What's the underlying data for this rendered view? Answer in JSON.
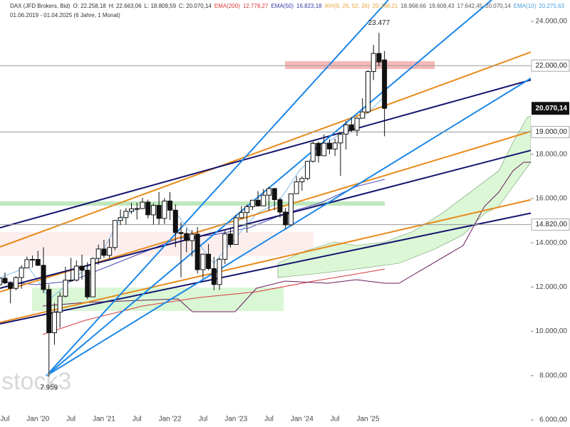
{
  "chart_data": {
    "type": "candlestick",
    "header": {
      "line1": [
        {
          "text": "DAX (JFD Brokers, Bid)",
          "color": "#333333"
        },
        {
          "text": "O: 22.258,18",
          "color": "#333333"
        },
        {
          "text": "H: 22.663,06",
          "color": "#333333"
        },
        {
          "text": "L: 18.809,59",
          "color": "#333333"
        },
        {
          "text": "C: 20.070,14",
          "color": "#333333"
        },
        {
          "text": "EMA(200)",
          "color": "#d83a3a"
        },
        {
          "text": "12.778,27",
          "color": "#d83a3a"
        },
        {
          "text": "EMA(50)",
          "color": "#3a3aa8"
        },
        {
          "text": "16.823,18",
          "color": "#3a3aa8"
        },
        {
          "text": "IKH(9, 26, 52, 26)",
          "color": "#e8a53a"
        },
        {
          "text": "20.248,21",
          "color": "#e8a53a"
        },
        {
          "text": "18.968,66",
          "color": "#555555"
        },
        {
          "text": "19.608,43",
          "color": "#555555"
        },
        {
          "text": "17.642,45",
          "color": "#555555"
        },
        {
          "text": "20.070,14",
          "color": "#555555"
        },
        {
          "text": "EMA(10)",
          "color": "#4a9fe0"
        },
        {
          "text": "20.275,63",
          "color": "#4a9fe0"
        }
      ],
      "line2": "01.06.2019 - 01.04.2025  (6 Jahre, 1 Monat)"
    },
    "watermark": "stock3",
    "up_color": "#ffffff",
    "down_color": "#111111",
    "candles": [
      [
        12100,
        12440,
        11990,
        12399
      ],
      [
        12399,
        12656,
        12120,
        12189
      ],
      [
        12189,
        12250,
        11266,
        11939
      ],
      [
        11939,
        12494,
        11850,
        12428
      ],
      [
        12428,
        12986,
        11924,
        12867
      ],
      [
        12867,
        13374,
        12850,
        13236
      ],
      [
        13236,
        13425,
        12886,
        13249
      ],
      [
        13249,
        13640,
        12948,
        12981
      ],
      [
        12981,
        13795,
        11725,
        11890
      ],
      [
        11890,
        12118,
        7959,
        9936
      ],
      [
        9936,
        11275,
        9392,
        10862
      ],
      [
        10862,
        11781,
        10160,
        11587
      ],
      [
        11587,
        12913,
        11522,
        12311
      ],
      [
        12311,
        13314,
        12232,
        12313
      ],
      [
        12313,
        13204,
        12253,
        12945
      ],
      [
        12945,
        13460,
        12337,
        12761
      ],
      [
        12761,
        13120,
        11450,
        11556
      ],
      [
        11556,
        13344,
        11580,
        13291
      ],
      [
        13291,
        13920,
        13012,
        13719
      ],
      [
        13719,
        14131,
        13311,
        13433
      ],
      [
        13433,
        14169,
        13310,
        13786
      ],
      [
        13786,
        15024,
        13657,
        15008
      ],
      [
        15008,
        15502,
        14806,
        15136
      ],
      [
        15136,
        15569,
        14816,
        15421
      ],
      [
        15421,
        15802,
        15306,
        15531
      ],
      [
        15531,
        15811,
        15048,
        15544
      ],
      [
        15544,
        16030,
        15513,
        15835
      ],
      [
        15835,
        15948,
        15101,
        15261
      ],
      [
        15261,
        15781,
        14818,
        15688
      ],
      [
        15688,
        16290,
        14827,
        15100
      ],
      [
        15100,
        16017,
        14850,
        15885
      ],
      [
        15885,
        16285,
        15030,
        15471
      ],
      [
        15471,
        15736,
        13807,
        14461
      ],
      [
        14461,
        14925,
        12439,
        14415
      ],
      [
        14415,
        14654,
        13571,
        14098
      ],
      [
        14098,
        14575,
        13380,
        14388
      ],
      [
        14388,
        14709,
        12619,
        12784
      ],
      [
        12784,
        13504,
        12391,
        13484
      ],
      [
        13484,
        13948,
        12757,
        12835
      ],
      [
        12835,
        13360,
        11862,
        12114
      ],
      [
        12114,
        13327,
        11869,
        13253
      ],
      [
        13253,
        14536,
        13040,
        14397
      ],
      [
        14397,
        14676,
        13791,
        13924
      ],
      [
        13924,
        15270,
        13977,
        15128
      ],
      [
        15128,
        15659,
        15085,
        15365
      ],
      [
        15365,
        15736,
        14458,
        15629
      ],
      [
        15629,
        15922,
        15482,
        15922
      ],
      [
        15922,
        16332,
        15629,
        15664
      ],
      [
        15664,
        16427,
        15733,
        16148
      ],
      [
        16148,
        16528,
        15455,
        16447
      ],
      [
        16447,
        16476,
        15469,
        15947
      ],
      [
        15947,
        16044,
        15138,
        15387
      ],
      [
        15387,
        15575,
        14630,
        14810
      ],
      [
        14810,
        16216,
        14784,
        16215
      ],
      [
        16215,
        17003,
        16207,
        16752
      ],
      [
        16752,
        17001,
        16345,
        16904
      ],
      [
        16904,
        17699,
        16824,
        17678
      ],
      [
        17678,
        18567,
        17624,
        18492
      ],
      [
        18492,
        18567,
        17626,
        17932
      ],
      [
        17932,
        18892,
        17909,
        18498
      ],
      [
        18498,
        18675,
        17993,
        18235
      ],
      [
        18235,
        18694,
        17918,
        18508
      ],
      [
        18508,
        18973,
        17024,
        18907
      ],
      [
        18907,
        19491,
        18209,
        19325
      ],
      [
        19325,
        19675,
        18992,
        19078
      ],
      [
        19078,
        19674,
        18818,
        19626
      ],
      [
        19626,
        20523,
        19618,
        19909
      ],
      [
        19909,
        21800,
        19835,
        21732
      ],
      [
        21732,
        22935,
        21346,
        22551
      ],
      [
        22551,
        23477,
        21978,
        22163
      ],
      [
        22258.18,
        22663.06,
        18809.59,
        20070.14
      ]
    ],
    "xlim": [
      0.1,
      96.6
    ],
    "xticks": [
      {
        "value": 1,
        "label": "Jul"
      },
      {
        "value": 7,
        "label": "Jan '20"
      },
      {
        "value": 13,
        "label": "Jul"
      },
      {
        "value": 19,
        "label": "Jan '21"
      },
      {
        "value": 25,
        "label": "Jul"
      },
      {
        "value": 31,
        "label": "Jan '22"
      },
      {
        "value": 37,
        "label": "Jul"
      },
      {
        "value": 43,
        "label": "Jan '23"
      },
      {
        "value": 49,
        "label": "Jul"
      },
      {
        "value": 55,
        "label": "Jan '24"
      },
      {
        "value": 61,
        "label": "Jul"
      },
      {
        "value": 67,
        "label": "Jan '25"
      }
    ],
    "ylim": [
      5679,
      24964
    ],
    "yticks": [
      {
        "value": 6000,
        "label": "6.000,00"
      },
      {
        "value": 8000,
        "label": "8.000,00"
      },
      {
        "value": 10000,
        "label": "10.000,00"
      },
      {
        "value": 12000,
        "label": "12.000,00"
      },
      {
        "value": 14000,
        "label": "14.000,00"
      },
      {
        "value": 16000,
        "label": "16.000,00"
      },
      {
        "value": 18000,
        "label": "18.000,00"
      },
      {
        "value": 24000,
        "label": "24.000,00"
      }
    ],
    "levels": [
      {
        "value": 22000,
        "label": "22.000,00"
      },
      {
        "value": 19000,
        "label": "19.000,00"
      },
      {
        "value": 14820,
        "label": "14.820,00"
      }
    ],
    "last_price": {
      "value": 20070.14,
      "label": "20.070,14"
    },
    "extremes": [
      {
        "value": 23477,
        "label": "23.477",
        "index": 69
      },
      {
        "value": 7959,
        "label": "7.959",
        "index": 9
      }
    ]
  }
}
